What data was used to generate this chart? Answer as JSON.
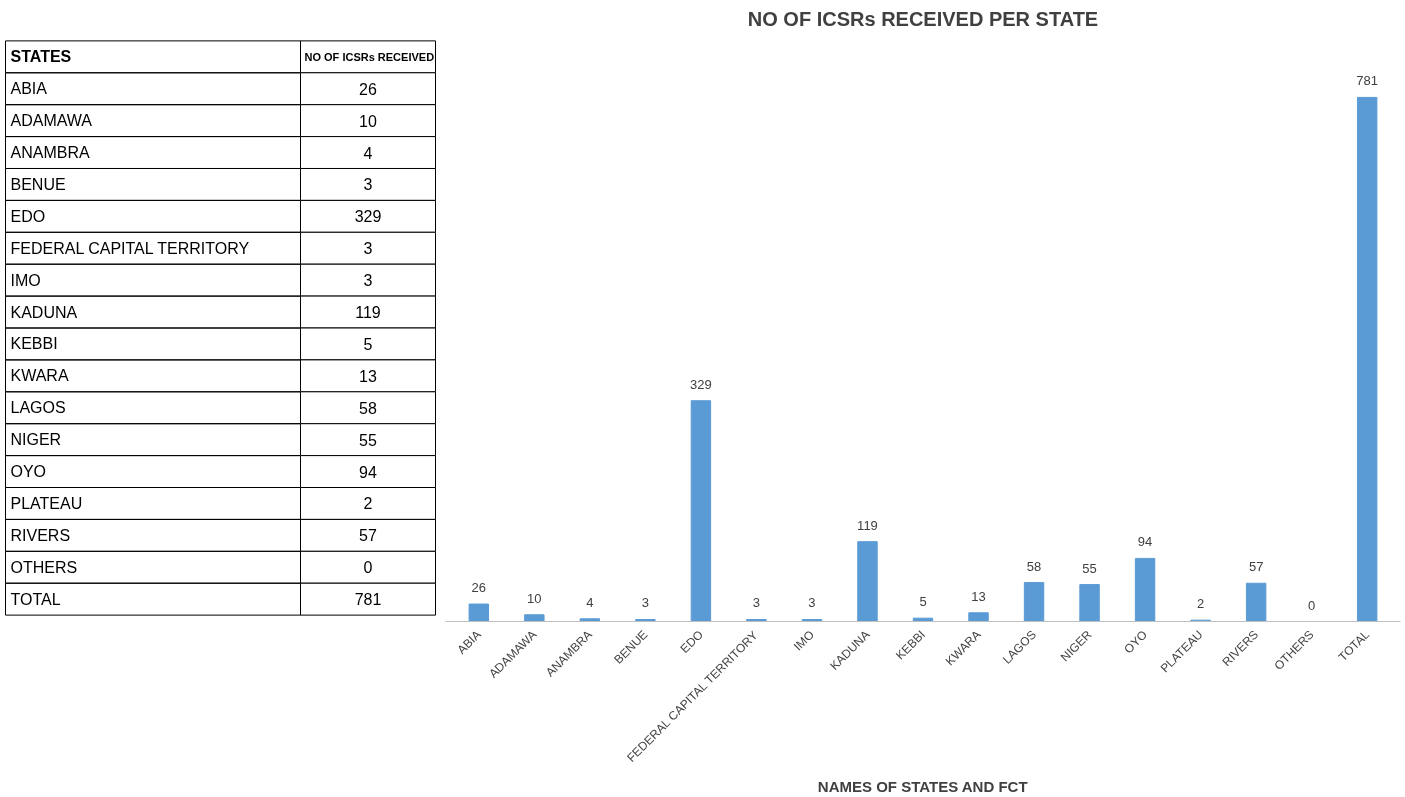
{
  "chart_data": [
    {
      "type": "heatmap",
      "ylabel": "STATES",
      "categories": [
        "NO OF ICSRs RECEIVED"
      ],
      "y_categories": [
        "ABIA",
        "ADAMAWA",
        "ANAMBRA",
        "BENUE",
        "EDO",
        "FEDERAL CAPITAL TERRITORY",
        "IMO",
        "KADUNA",
        "KEBBI",
        "KWARA",
        "LAGOS",
        "NIGER",
        "OYO",
        "PLATEAU",
        "RIVERS",
        "OTHERS",
        "TOTAL"
      ],
      "cells": [
        [
          26
        ],
        [
          10
        ],
        [
          4
        ],
        [
          3
        ],
        [
          329
        ],
        [
          3
        ],
        [
          3
        ],
        [
          119
        ],
        [
          5
        ],
        [
          13
        ],
        [
          58
        ],
        [
          55
        ],
        [
          94
        ],
        [
          2
        ],
        [
          57
        ],
        [
          0
        ],
        [
          781
        ]
      ],
      "data_labels": true
    },
    {
      "type": "bar",
      "title": "NO OF ICSRs RECEIVED PER STATE",
      "xlabel": "NAMES OF STATES AND FCT",
      "categories": [
        "ABIA",
        "ADAMAWA",
        "ANAMBRA",
        "BENUE",
        "EDO",
        "FEDERAL CAPITAL TERRITORY",
        "IMO",
        "KADUNA",
        "KEBBI",
        "KWARA",
        "LAGOS",
        "NIGER",
        "OYO",
        "PLATEAU",
        "RIVERS",
        "OTHERS",
        "TOTAL"
      ],
      "values": [
        26,
        10,
        4,
        3,
        329,
        3,
        3,
        119,
        5,
        13,
        58,
        55,
        94,
        2,
        57,
        0,
        781
      ],
      "color": "#5b9bd5",
      "data_labels": true
    }
  ]
}
